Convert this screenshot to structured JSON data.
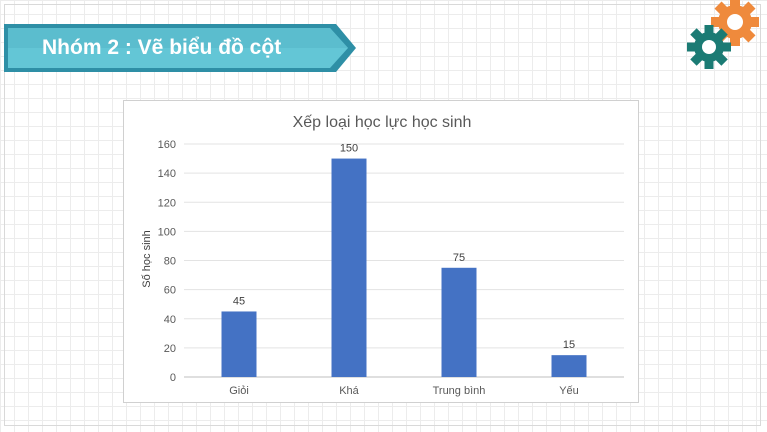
{
  "slide": {
    "title": "Nhóm 2 : Vẽ biểu đồ cột"
  },
  "colors": {
    "banner_dark": "#2e8fa6",
    "banner_light": "#63c6d6",
    "gear_orange": "#ef8a3c",
    "gear_teal": "#1b7b74",
    "bar": "#4472c4"
  },
  "icons": [
    "gear-orange-icon",
    "gear-teal-icon"
  ],
  "chart_data": {
    "type": "bar",
    "title": "Xếp loại học lực học sinh",
    "xlabel": "",
    "ylabel": "Số học sinh",
    "categories": [
      "Giỏi",
      "Khá",
      "Trung bình",
      "Yếu"
    ],
    "values": [
      45,
      150,
      75,
      15
    ],
    "ylim": [
      0,
      160
    ],
    "yticks": [
      0,
      20,
      40,
      60,
      80,
      100,
      120,
      140,
      160
    ],
    "grid": true,
    "legend": "none",
    "data_labels": true
  }
}
